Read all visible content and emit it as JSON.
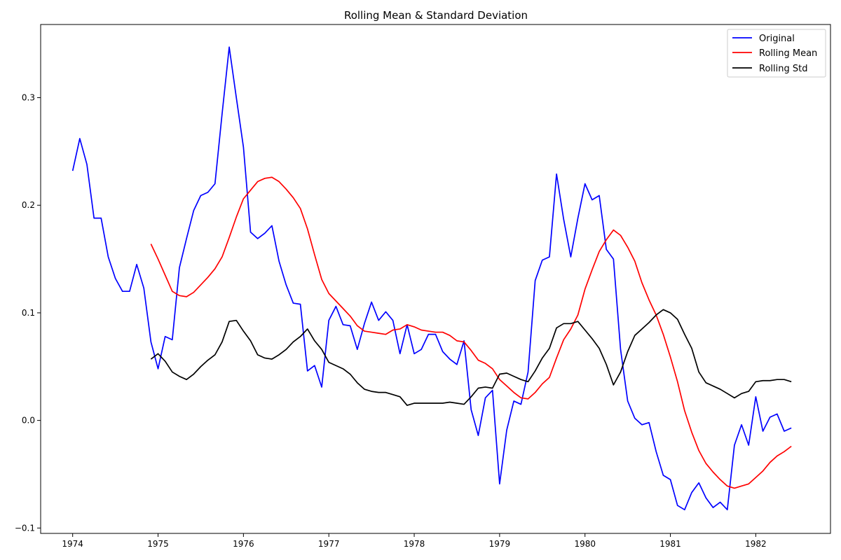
{
  "chart_data": {
    "type": "line",
    "title": "Rolling Mean & Standard Deviation",
    "xlabel": "",
    "ylabel": "",
    "xlim": [
      1973.625,
      1982.875
    ],
    "ylim": [
      -0.105,
      0.368
    ],
    "x_ticks": [
      {
        "value": 1974,
        "label": "1974"
      },
      {
        "value": 1975,
        "label": "1975"
      },
      {
        "value": 1976,
        "label": "1976"
      },
      {
        "value": 1977,
        "label": "1977"
      },
      {
        "value": 1978,
        "label": "1978"
      },
      {
        "value": 1979,
        "label": "1979"
      },
      {
        "value": 1980,
        "label": "1980"
      },
      {
        "value": 1981,
        "label": "1981"
      },
      {
        "value": 1982,
        "label": "1982"
      }
    ],
    "y_ticks": [
      {
        "value": -0.1,
        "label": "−0.1"
      },
      {
        "value": 0.0,
        "label": "0.0"
      },
      {
        "value": 0.1,
        "label": "0.1"
      },
      {
        "value": 0.2,
        "label": "0.2"
      },
      {
        "value": 0.3,
        "label": "0.3"
      }
    ],
    "grid": false,
    "legend_position": "top-right",
    "series": [
      {
        "name": "Original",
        "color": "#0000ff",
        "start": "1974-01",
        "values": [
          0.232,
          0.262,
          0.238,
          0.188,
          0.188,
          0.152,
          0.132,
          0.12,
          0.12,
          0.145,
          0.123,
          0.073,
          0.048,
          0.078,
          0.075,
          0.142,
          0.169,
          0.195,
          0.209,
          0.212,
          0.22,
          0.285,
          0.347,
          0.3,
          0.254,
          0.175,
          0.169,
          0.174,
          0.181,
          0.148,
          0.126,
          0.109,
          0.108,
          0.046,
          0.051,
          0.031,
          0.093,
          0.106,
          0.089,
          0.088,
          0.066,
          0.09,
          0.11,
          0.093,
          0.101,
          0.093,
          0.062,
          0.089,
          0.062,
          0.066,
          0.08,
          0.08,
          0.064,
          0.057,
          0.052,
          0.074,
          0.01,
          -0.014,
          0.021,
          0.028,
          -0.059,
          -0.009,
          0.018,
          0.015,
          0.045,
          0.13,
          0.149,
          0.152,
          0.229,
          0.187,
          0.152,
          0.188,
          0.22,
          0.205,
          0.209,
          0.159,
          0.15,
          0.066,
          0.018,
          0.002,
          -0.004,
          -0.002,
          -0.029,
          -0.051,
          -0.055,
          -0.079,
          -0.083,
          -0.067,
          -0.058,
          -0.072,
          -0.081,
          -0.076,
          -0.083,
          -0.023,
          -0.004,
          -0.023,
          0.022,
          -0.01,
          0.003,
          0.006,
          -0.01,
          -0.007
        ]
      },
      {
        "name": "Rolling Mean",
        "color": "#ff0000",
        "start": "1974-12",
        "values": [
          0.164,
          0.15,
          0.135,
          0.12,
          0.116,
          0.115,
          0.119,
          0.126,
          0.133,
          0.141,
          0.152,
          0.17,
          0.189,
          0.206,
          0.214,
          0.222,
          0.225,
          0.226,
          0.222,
          0.215,
          0.207,
          0.197,
          0.178,
          0.154,
          0.131,
          0.118,
          0.111,
          0.104,
          0.097,
          0.088,
          0.083,
          0.082,
          0.081,
          0.08,
          0.084,
          0.085,
          0.089,
          0.087,
          0.084,
          0.083,
          0.082,
          0.082,
          0.079,
          0.074,
          0.073,
          0.065,
          0.056,
          0.053,
          0.048,
          0.038,
          0.032,
          0.026,
          0.021,
          0.02,
          0.026,
          0.034,
          0.04,
          0.058,
          0.075,
          0.085,
          0.098,
          0.122,
          0.14,
          0.157,
          0.168,
          0.177,
          0.172,
          0.161,
          0.148,
          0.128,
          0.112,
          0.098,
          0.08,
          0.059,
          0.036,
          0.009,
          -0.011,
          -0.028,
          -0.04,
          -0.048,
          -0.055,
          -0.061,
          -0.063,
          -0.061,
          -0.059,
          -0.053,
          -0.047,
          -0.039,
          -0.033,
          -0.029,
          -0.024
        ]
      },
      {
        "name": "Rolling Std",
        "color": "#000000",
        "start": "1974-12",
        "values": [
          0.057,
          0.062,
          0.055,
          0.045,
          0.041,
          0.038,
          0.043,
          0.05,
          0.056,
          0.061,
          0.073,
          0.092,
          0.093,
          0.083,
          0.074,
          0.061,
          0.058,
          0.057,
          0.061,
          0.066,
          0.073,
          0.078,
          0.085,
          0.074,
          0.066,
          0.054,
          0.051,
          0.048,
          0.043,
          0.035,
          0.029,
          0.027,
          0.026,
          0.026,
          0.024,
          0.022,
          0.014,
          0.016,
          0.016,
          0.016,
          0.016,
          0.016,
          0.017,
          0.016,
          0.015,
          0.022,
          0.03,
          0.031,
          0.03,
          0.043,
          0.044,
          0.041,
          0.038,
          0.036,
          0.046,
          0.058,
          0.067,
          0.086,
          0.09,
          0.09,
          0.092,
          0.084,
          0.076,
          0.067,
          0.052,
          0.033,
          0.045,
          0.064,
          0.079,
          0.085,
          0.091,
          0.098,
          0.103,
          0.1,
          0.094,
          0.08,
          0.067,
          0.045,
          0.035,
          0.032,
          0.029,
          0.025,
          0.021,
          0.025,
          0.027,
          0.036,
          0.037,
          0.037,
          0.038,
          0.038,
          0.036
        ]
      }
    ]
  }
}
